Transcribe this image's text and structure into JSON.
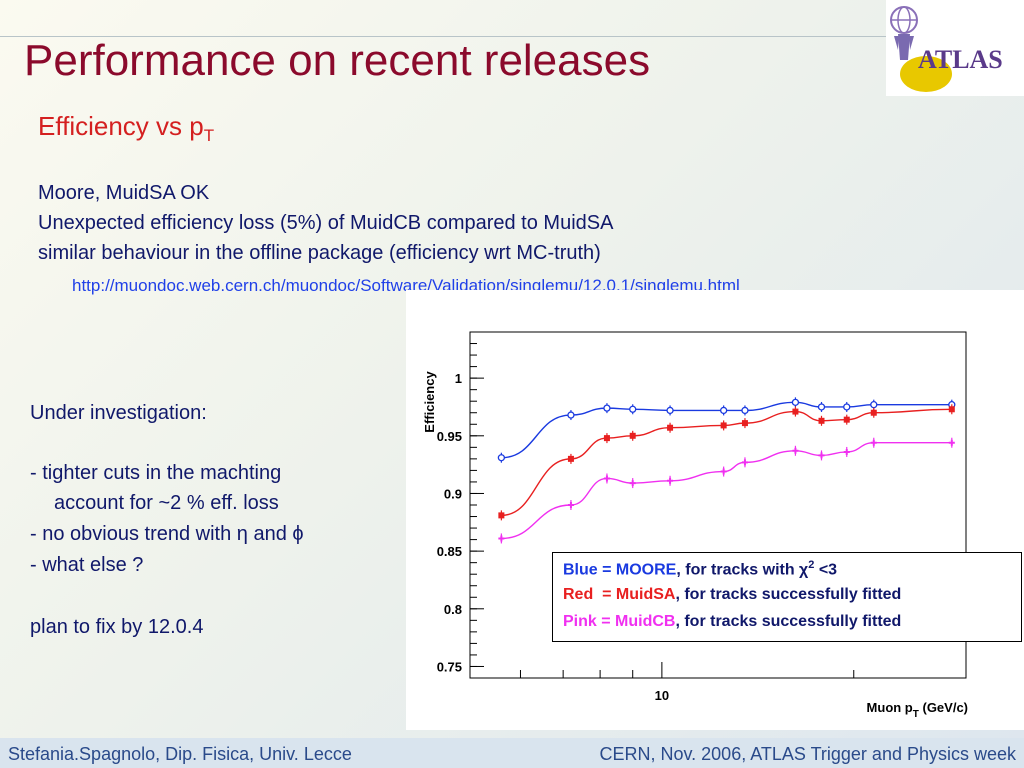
{
  "slide": {
    "title": "Performance on recent releases",
    "subtitle_main": "Efficiency vs p",
    "subtitle_sub": "T",
    "lines": [
      "Moore, MuidSA OK",
      "Unexpected efficiency loss (5%) of MuidCB compared to MuidSA",
      "similar behaviour in the offline package (efficiency wrt MC-truth)"
    ],
    "link": "http://muondoc.web.cern.ch/muondoc/Software/Validation/singlemu/12.0.1/singlemu.html",
    "left_notes": [
      "Under investigation:",
      "- tighter cuts in the machting",
      "account for ~2 % eff. loss",
      "- no obvious trend with η and ϕ",
      "- what else ?",
      "plan to fix by 12.0.4"
    ],
    "logo_text": "ATLAS",
    "footer_left": "Stefania.Spagnolo, Dip. Fisica, Univ. Lecce",
    "footer_right": "CERN, Nov. 2006, ATLAS Trigger and Physics week"
  },
  "legend": {
    "line1_a": "Blue = MOORE",
    "line1_b": ", for tracks with χ",
    "line1_sup": "2",
    "line1_c": " <3",
    "line2_a": "Red  = MuidSA",
    "line2_b": ", for tracks successfully fitted",
    "line3_a": "Pink = MuidCB",
    "line3_b": ", for tracks successfully fitted"
  },
  "colors": {
    "title": "#8b0a2c",
    "blue": "#1a3ae0",
    "red": "#e82020",
    "pink": "#f030f0",
    "text": "#10186a"
  },
  "chart_data": {
    "type": "line",
    "xlabel": "Muon p",
    "xlabel_sub": "T",
    "xlabel_unit": " (GeV/c)",
    "ylabel": "Efficiency",
    "xscale": "log",
    "xlim": [
      5,
      30
    ],
    "ylim": [
      0.74,
      1.04
    ],
    "x_tick_labels": [
      "10"
    ],
    "y_ticks": [
      0.75,
      0.8,
      0.85,
      0.9,
      0.95,
      1
    ],
    "y_tick_labels": [
      "0.75",
      "0.8",
      "0.85",
      "0.9",
      "0.95",
      "1"
    ],
    "x": [
      5.6,
      7.2,
      8.2,
      9.0,
      10.3,
      12.5,
      13.5,
      16.2,
      17.8,
      19.5,
      21.5,
      28.5
    ],
    "series": [
      {
        "name": "MOORE",
        "color": "#1a3ae0",
        "marker": "open-circle",
        "values": [
          0.931,
          0.968,
          0.974,
          0.973,
          0.972,
          0.972,
          0.972,
          0.979,
          0.975,
          0.975,
          0.977,
          0.977
        ]
      },
      {
        "name": "MuidSA",
        "color": "#e82020",
        "marker": "filled-square",
        "values": [
          0.881,
          0.93,
          0.948,
          0.95,
          0.957,
          0.959,
          0.961,
          0.971,
          0.963,
          0.964,
          0.97,
          0.973
        ]
      },
      {
        "name": "MuidCB",
        "color": "#f030f0",
        "marker": "star",
        "values": [
          0.861,
          0.89,
          0.913,
          0.909,
          0.911,
          0.919,
          0.927,
          0.937,
          0.933,
          0.936,
          0.944,
          0.944
        ]
      }
    ]
  }
}
